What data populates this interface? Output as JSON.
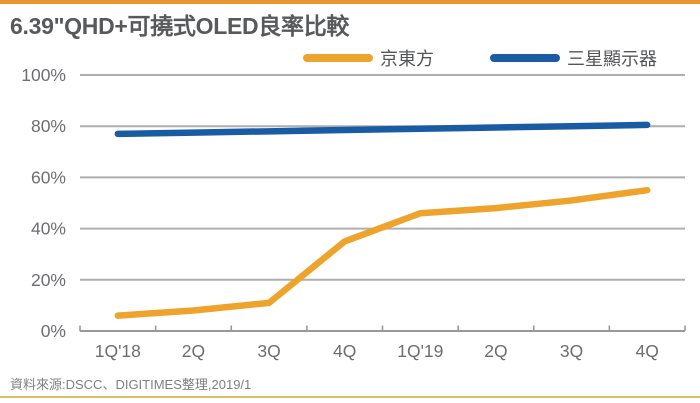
{
  "page": {
    "title": "6.39\"QHD+可撓式OLED良率比較",
    "source": "資料來源:DSCC、DIGITIMES整理,2019/1"
  },
  "colors": {
    "top_bar": "#E8952F",
    "bottom_border": "#DCBE63",
    "grid": "#ACAEB0",
    "axis": "#97999B",
    "axis_text": "#6D6E71",
    "title_text": "#58595B"
  },
  "chart_data": {
    "type": "line",
    "title": "6.39\"QHD+可撓式OLED良率比較",
    "categories": [
      "1Q'18",
      "2Q",
      "3Q",
      "4Q",
      "1Q'19",
      "2Q",
      "3Q",
      "4Q"
    ],
    "series": [
      {
        "name": "京東方",
        "color": "#EEA32C",
        "values": [
          6,
          8,
          11,
          35,
          46,
          48,
          51,
          55
        ]
      },
      {
        "name": "三星顯示器",
        "color": "#1A5CA4",
        "values": [
          77,
          77.5,
          78,
          78.5,
          79,
          79.5,
          80,
          80.5
        ]
      }
    ],
    "ylim": [
      0,
      100
    ],
    "ytick_step": 20,
    "ytick_labels": [
      "0%",
      "20%",
      "40%",
      "60%",
      "80%",
      "100%"
    ],
    "unit": "%",
    "grid": true,
    "legend_position": "top"
  }
}
